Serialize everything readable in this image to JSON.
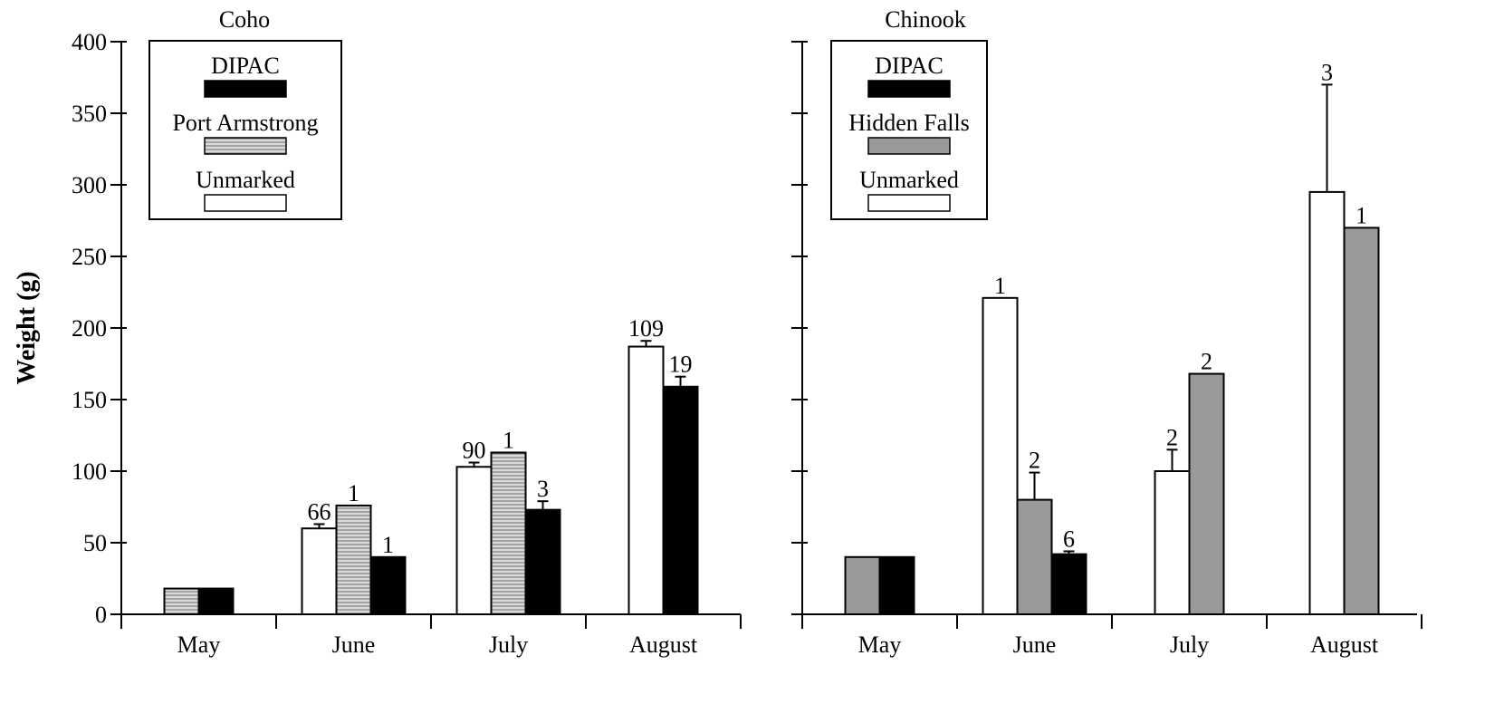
{
  "ylabel": "Weight (g)",
  "y_ticks": [
    "0",
    "50",
    "100",
    "150",
    "200",
    "250",
    "300",
    "350",
    "400"
  ],
  "chart_data": [
    {
      "type": "bar",
      "title": "Coho",
      "ylabel": "Weight (g)",
      "ylim": [
        0,
        400
      ],
      "categories": [
        "May",
        "June",
        "July",
        "August"
      ],
      "legend_position": "top-left",
      "series": [
        {
          "name": "Unmarked",
          "fill": "#ffffff",
          "pattern": "none",
          "values": [
            null,
            60,
            103,
            187
          ],
          "errors": [
            null,
            3,
            3,
            4
          ],
          "n_labels": [
            "",
            "66",
            "90",
            "109"
          ]
        },
        {
          "name": "Port Armstrong",
          "fill": "#c8c8c8",
          "pattern": "horizontal-lines",
          "values": [
            18,
            76,
            113,
            null
          ],
          "errors": [
            null,
            null,
            null,
            null
          ],
          "n_labels": [
            "",
            "1",
            "1",
            ""
          ]
        },
        {
          "name": "DIPAC",
          "fill": "#000000",
          "pattern": "none",
          "values": [
            18,
            40,
            73,
            159
          ],
          "errors": [
            null,
            null,
            6,
            7
          ],
          "n_labels": [
            "",
            "1",
            "3",
            "19"
          ]
        }
      ],
      "legend_order": [
        "DIPAC",
        "Port Armstrong",
        "Unmarked"
      ]
    },
    {
      "type": "bar",
      "title": "Chinook",
      "ylim": [
        0,
        400
      ],
      "categories": [
        "May",
        "June",
        "July",
        "August"
      ],
      "legend_position": "top-left",
      "series": [
        {
          "name": "Unmarked",
          "fill": "#ffffff",
          "pattern": "none",
          "values": [
            null,
            221,
            100,
            295
          ],
          "errors": [
            null,
            null,
            15,
            75
          ],
          "n_labels": [
            "",
            "1",
            "2",
            "3"
          ]
        },
        {
          "name": "Hidden Falls",
          "fill": "#999999",
          "pattern": "none",
          "values": [
            40,
            80,
            168,
            270
          ],
          "errors": [
            null,
            19,
            null,
            null
          ],
          "n_labels": [
            "",
            "2",
            "2",
            "1"
          ]
        },
        {
          "name": "DIPAC",
          "fill": "#000000",
          "pattern": "none",
          "values": [
            40,
            42,
            null,
            null
          ],
          "errors": [
            null,
            2,
            null,
            null
          ],
          "n_labels": [
            "",
            "6",
            "",
            ""
          ]
        }
      ],
      "legend_order": [
        "DIPAC",
        "Hidden Falls",
        "Unmarked"
      ]
    }
  ]
}
